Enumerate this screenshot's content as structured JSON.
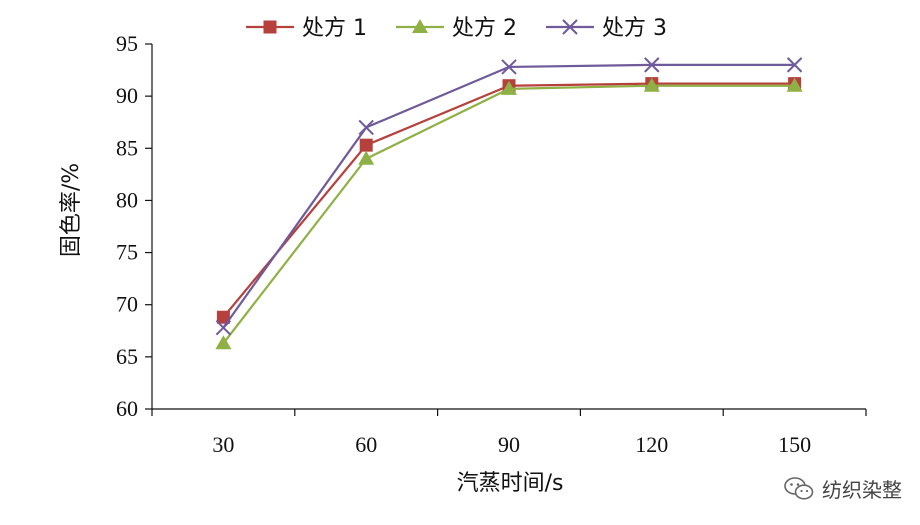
{
  "chart_data": {
    "type": "line",
    "x": [
      30,
      60,
      90,
      120,
      150
    ],
    "series": [
      {
        "name": "处方 1",
        "values": [
          68.8,
          85.3,
          91.0,
          91.2,
          91.2
        ],
        "color": "#b5403c",
        "marker": "square"
      },
      {
        "name": "处方 2",
        "values": [
          66.3,
          84.0,
          90.7,
          91.0,
          91.0
        ],
        "color": "#8fb045",
        "marker": "triangle"
      },
      {
        "name": "处方 3",
        "values": [
          67.8,
          87.0,
          92.8,
          93.0,
          93.0
        ],
        "color": "#6f5a9a",
        "marker": "x"
      }
    ],
    "xlabel": "汽蒸时间/s",
    "ylabel": "固色率/%",
    "ylim": [
      60,
      95
    ],
    "yticks": [
      60,
      65,
      70,
      75,
      80,
      85,
      90,
      95
    ],
    "xtick_labels": [
      "30",
      "60",
      "90",
      "120",
      "150"
    ],
    "grid": false,
    "legend_position": "top"
  },
  "watermark": {
    "text": "纺织染整",
    "icon": "wechat-icon"
  }
}
